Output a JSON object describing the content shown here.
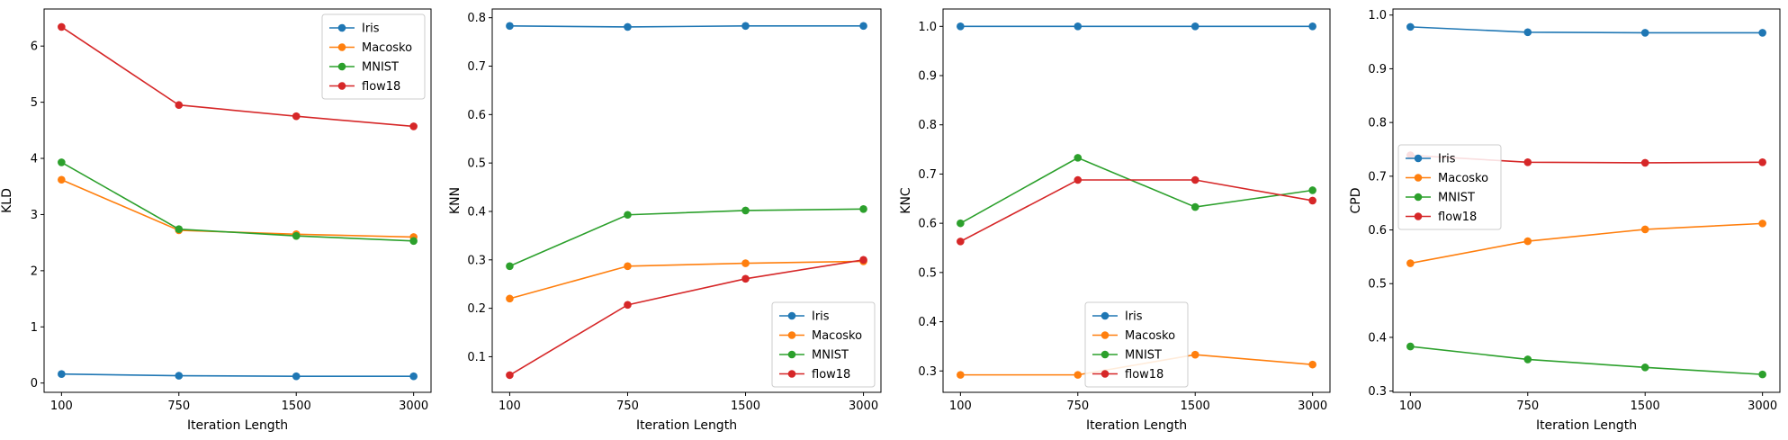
{
  "chart_data": [
    {
      "type": "line",
      "xlabel": "Iteration Length",
      "ylabel": "KLD",
      "categories": [
        "100",
        "750",
        "1500",
        "3000"
      ],
      "ylim": [
        -0.165,
        6.66
      ],
      "yticks": [
        0,
        1,
        2,
        3,
        4,
        5,
        6
      ],
      "legend_position": "top-right",
      "grid": false,
      "series": [
        {
          "name": "Iris",
          "color": "#1f77b4",
          "values": [
            0.16,
            0.13,
            0.12,
            0.12
          ]
        },
        {
          "name": "Macosko",
          "color": "#ff7f0e",
          "values": [
            3.62,
            2.72,
            2.65,
            2.6
          ]
        },
        {
          "name": "MNIST",
          "color": "#2ca02c",
          "values": [
            3.93,
            2.74,
            2.62,
            2.53
          ]
        },
        {
          "name": "flow18",
          "color": "#d62728",
          "values": [
            6.34,
            4.95,
            4.75,
            4.57
          ]
        }
      ]
    },
    {
      "type": "line",
      "xlabel": "Iteration Length",
      "ylabel": "KNN",
      "categories": [
        "100",
        "750",
        "1500",
        "3000"
      ],
      "ylim": [
        0.0265,
        0.818
      ],
      "yticks": [
        0.1,
        0.2,
        0.3,
        0.4,
        0.5,
        0.6,
        0.7,
        0.8
      ],
      "legend_position": "bottom-right",
      "grid": false,
      "series": [
        {
          "name": "Iris",
          "color": "#1f77b4",
          "values": [
            0.783,
            0.781,
            0.783,
            0.783
          ]
        },
        {
          "name": "Macosko",
          "color": "#ff7f0e",
          "values": [
            0.22,
            0.287,
            0.293,
            0.297
          ]
        },
        {
          "name": "MNIST",
          "color": "#2ca02c",
          "values": [
            0.287,
            0.393,
            0.402,
            0.405
          ]
        },
        {
          "name": "flow18",
          "color": "#d62728",
          "values": [
            0.062,
            0.207,
            0.261,
            0.3
          ]
        }
      ]
    },
    {
      "type": "line",
      "xlabel": "Iteration Length",
      "ylabel": "KNC",
      "categories": [
        "100",
        "750",
        "1500",
        "3000"
      ],
      "ylim": [
        0.2566,
        1.0353
      ],
      "yticks": [
        0.3,
        0.4,
        0.5,
        0.6,
        0.7,
        0.8,
        0.9,
        1.0
      ],
      "legend_position": "bottom-center",
      "grid": false,
      "series": [
        {
          "name": "Iris",
          "color": "#1f77b4",
          "values": [
            1.0,
            1.0,
            1.0,
            1.0
          ]
        },
        {
          "name": "Macosko",
          "color": "#ff7f0e",
          "values": [
            0.292,
            0.292,
            0.333,
            0.313
          ]
        },
        {
          "name": "MNIST",
          "color": "#2ca02c",
          "values": [
            0.6,
            0.733,
            0.633,
            0.667
          ]
        },
        {
          "name": "flow18",
          "color": "#d62728",
          "values": [
            0.563,
            0.688,
            0.688,
            0.646
          ]
        }
      ]
    },
    {
      "type": "line",
      "xlabel": "Iteration Length",
      "ylabel": "CPD",
      "categories": [
        "100",
        "750",
        "1500",
        "3000"
      ],
      "ylim": [
        0.2977,
        1.0113
      ],
      "yticks": [
        0.3,
        0.4,
        0.5,
        0.6,
        0.7,
        0.8,
        0.9,
        1.0
      ],
      "legend_position": "center-left",
      "grid": false,
      "series": [
        {
          "name": "Iris",
          "color": "#1f77b4",
          "values": [
            0.978,
            0.968,
            0.967,
            0.967
          ]
        },
        {
          "name": "Macosko",
          "color": "#ff7f0e",
          "values": [
            0.538,
            0.579,
            0.601,
            0.612
          ]
        },
        {
          "name": "MNIST",
          "color": "#2ca02c",
          "values": [
            0.383,
            0.359,
            0.344,
            0.331
          ]
        },
        {
          "name": "flow18",
          "color": "#d62728",
          "values": [
            0.739,
            0.726,
            0.725,
            0.726
          ]
        }
      ]
    }
  ]
}
